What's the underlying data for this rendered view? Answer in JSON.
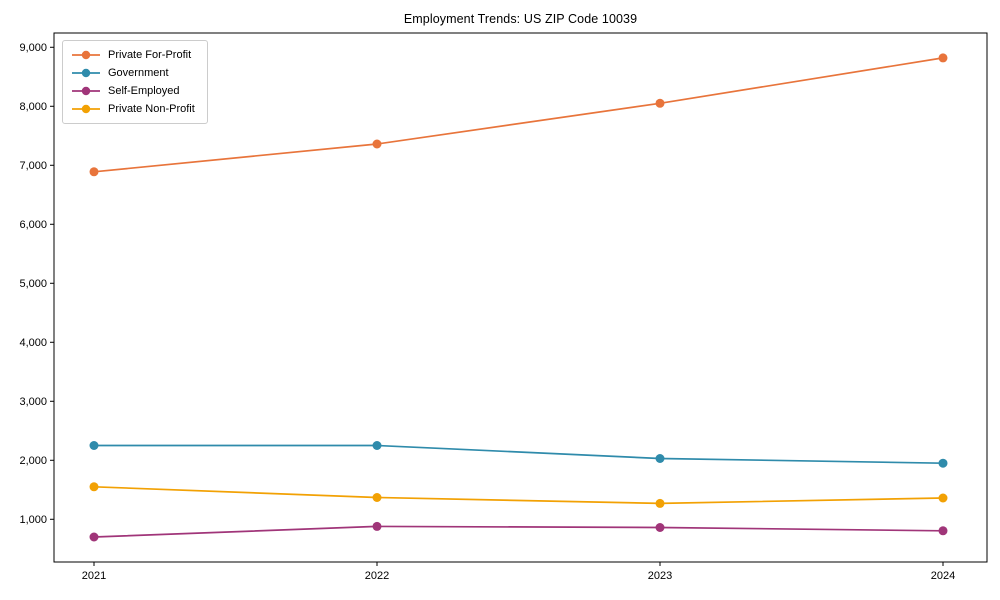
{
  "chart": {
    "title": "Employment Trends: US ZIP Code 10039"
  },
  "chart_data": {
    "type": "line",
    "title": "Employment Trends: US ZIP Code 10039",
    "categories": [
      "2021",
      "2022",
      "2023",
      "2024"
    ],
    "series": [
      {
        "name": "Private For-Profit",
        "color": "#e8743b",
        "values": [
          6890,
          7360,
          8050,
          8820
        ]
      },
      {
        "name": "Government",
        "color": "#2f8bab",
        "values": [
          2250,
          2250,
          2030,
          1950
        ]
      },
      {
        "name": "Self-Employed",
        "color": "#a03579",
        "values": [
          700,
          880,
          860,
          805
        ]
      },
      {
        "name": "Private Non-Profit",
        "color": "#f2a104",
        "values": [
          1550,
          1370,
          1270,
          1360
        ]
      }
    ],
    "xlabel": "",
    "ylabel": "",
    "ylim": [
      276,
      9242
    ],
    "y_ticks": [
      1000,
      2000,
      3000,
      4000,
      5000,
      6000,
      7000,
      8000,
      9000
    ],
    "y_tick_labels": [
      "1,000",
      "2,000",
      "3,000",
      "4,000",
      "5,000",
      "6,000",
      "7,000",
      "8,000",
      "9,000"
    ],
    "grid": false,
    "legend_position": "upper-left",
    "marker": "circle",
    "axis_color": "#000000"
  }
}
